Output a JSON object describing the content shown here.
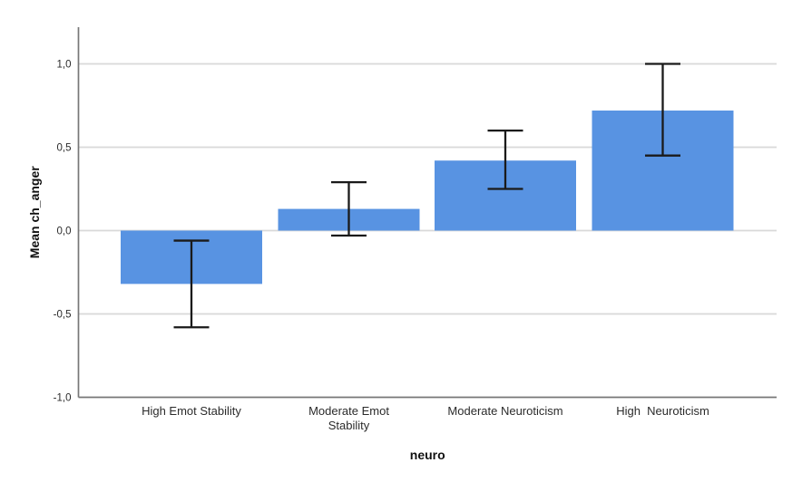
{
  "chart_data": {
    "type": "bar",
    "title": "",
    "xlabel": "neuro",
    "ylabel": "Mean ch_anger",
    "categories": [
      "High Emot Stability",
      "Moderate Emot Stability",
      "Moderate Neuroticism",
      "High  Neuroticism"
    ],
    "category_label_lines": [
      [
        "High Emot Stability"
      ],
      [
        "Moderate Emot",
        "Stability"
      ],
      [
        "Moderate Neuroticism"
      ],
      [
        "High  Neuroticism"
      ]
    ],
    "values": [
      -0.32,
      0.13,
      0.42,
      0.72
    ],
    "error_bars": {
      "low": [
        -0.58,
        -0.03,
        0.25,
        0.45
      ],
      "high": [
        -0.06,
        0.29,
        0.6,
        1.0
      ]
    },
    "ylim": [
      -1.0,
      1.0
    ],
    "yticks": {
      "values": [
        1.0,
        0.5,
        0.0,
        -0.5,
        -1.0
      ],
      "labels": [
        "1,0",
        "0,5",
        "0,0",
        "-0,5",
        "-1,0"
      ]
    },
    "grid": true,
    "legend": "none",
    "decimal_separator": ",",
    "colors": {
      "bar": "#5893E2",
      "error_bar": "#1a1a1a",
      "grid": "#d9d9d9",
      "axis": "#777777",
      "text": "#2b2b2b",
      "background": "#ffffff"
    }
  }
}
